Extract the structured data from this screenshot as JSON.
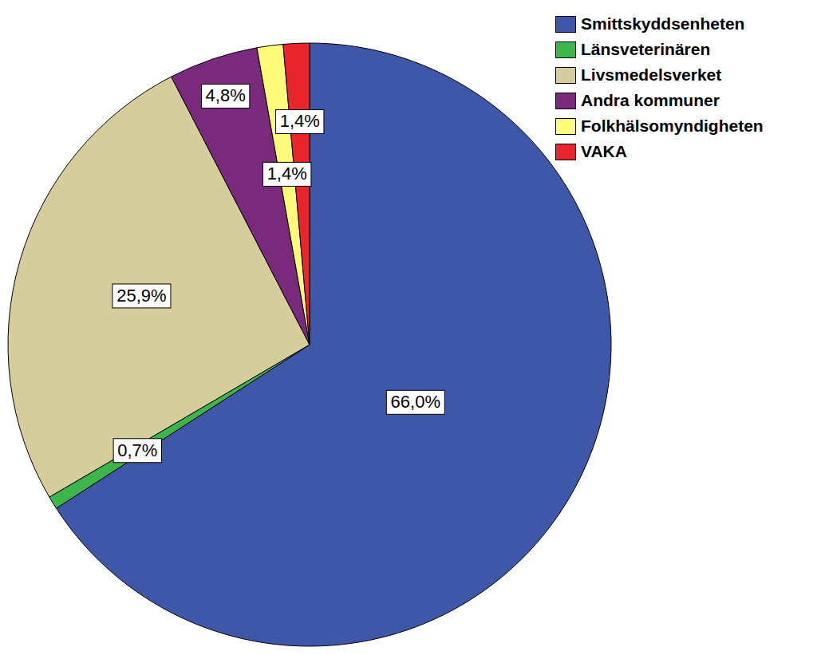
{
  "chart_data": {
    "type": "pie",
    "categories": [
      "Smittskyddsenheten",
      "Länsveterinären",
      "Livsmedelsverket",
      "Andra kommuner",
      "Folkhälsomyndigheten",
      "VAKA"
    ],
    "values": [
      66.0,
      0.7,
      25.9,
      4.8,
      1.4,
      1.4
    ],
    "value_labels": [
      "66,0%",
      "0,7%",
      "25,9%",
      "4,8%",
      "1,4%",
      "1,4%"
    ],
    "colors": [
      "#3f57a8",
      "#3cb54a",
      "#d5cd9c",
      "#7a2a7c",
      "#fffb7a",
      "#e8262c"
    ],
    "legend": "top-right",
    "data_labels": true
  }
}
